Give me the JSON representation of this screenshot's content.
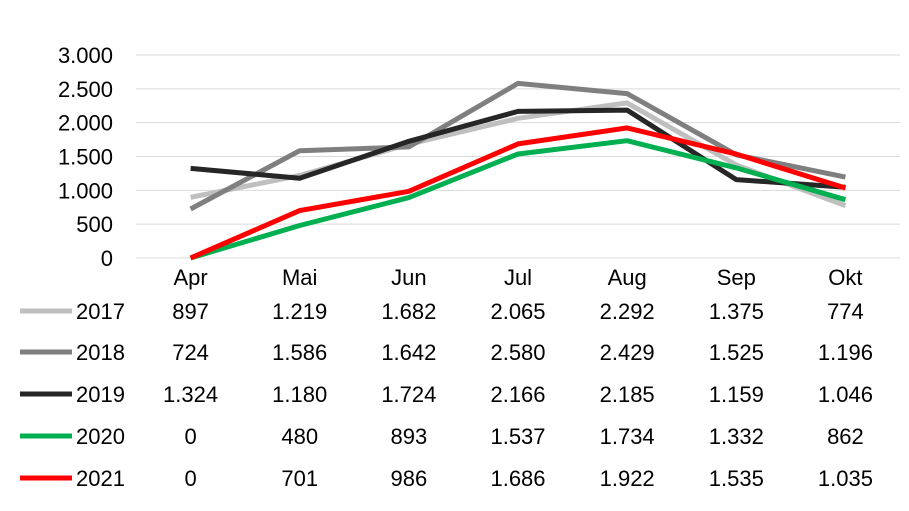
{
  "chart_data": {
    "type": "line",
    "title": "",
    "xlabel": "",
    "ylabel": "",
    "categories": [
      "Apr",
      "Mai",
      "Jun",
      "Jul",
      "Aug",
      "Sep",
      "Okt"
    ],
    "ylim": [
      0,
      3000
    ],
    "yticks": [
      0,
      500,
      1000,
      1500,
      2000,
      2500,
      3000
    ],
    "ytick_labels": [
      "0",
      "500",
      "1.000",
      "1.500",
      "2.000",
      "2.500",
      "3.000"
    ],
    "grid": "horizontal",
    "legend": "data-table",
    "series": [
      {
        "name": "2017",
        "color": "#bfbfbf",
        "values": [
          897,
          1219,
          1682,
          2065,
          2292,
          1375,
          774
        ],
        "labels": [
          "897",
          "1.219",
          "1.682",
          "2.065",
          "2.292",
          "1.375",
          "774"
        ]
      },
      {
        "name": "2018",
        "color": "#7f7f7f",
        "values": [
          724,
          1586,
          1642,
          2580,
          2429,
          1525,
          1196
        ],
        "labels": [
          "724",
          "1.586",
          "1.642",
          "2.580",
          "2.429",
          "1.525",
          "1.196"
        ]
      },
      {
        "name": "2019",
        "color": "#262626",
        "values": [
          1324,
          1180,
          1724,
          2166,
          2185,
          1159,
          1046
        ],
        "labels": [
          "1.324",
          "1.180",
          "1.724",
          "2.166",
          "2.185",
          "1.159",
          "1.046"
        ]
      },
      {
        "name": "2020",
        "color": "#00b050",
        "values": [
          0,
          480,
          893,
          1537,
          1734,
          1332,
          862
        ],
        "labels": [
          "0",
          "480",
          "893",
          "1.537",
          "1.734",
          "1.332",
          "862"
        ]
      },
      {
        "name": "2021",
        "color": "#ff0000",
        "values": [
          0,
          701,
          986,
          1686,
          1922,
          1535,
          1035
        ],
        "labels": [
          "0",
          "701",
          "986",
          "1.686",
          "1.922",
          "1.535",
          "1.035"
        ]
      }
    ]
  }
}
